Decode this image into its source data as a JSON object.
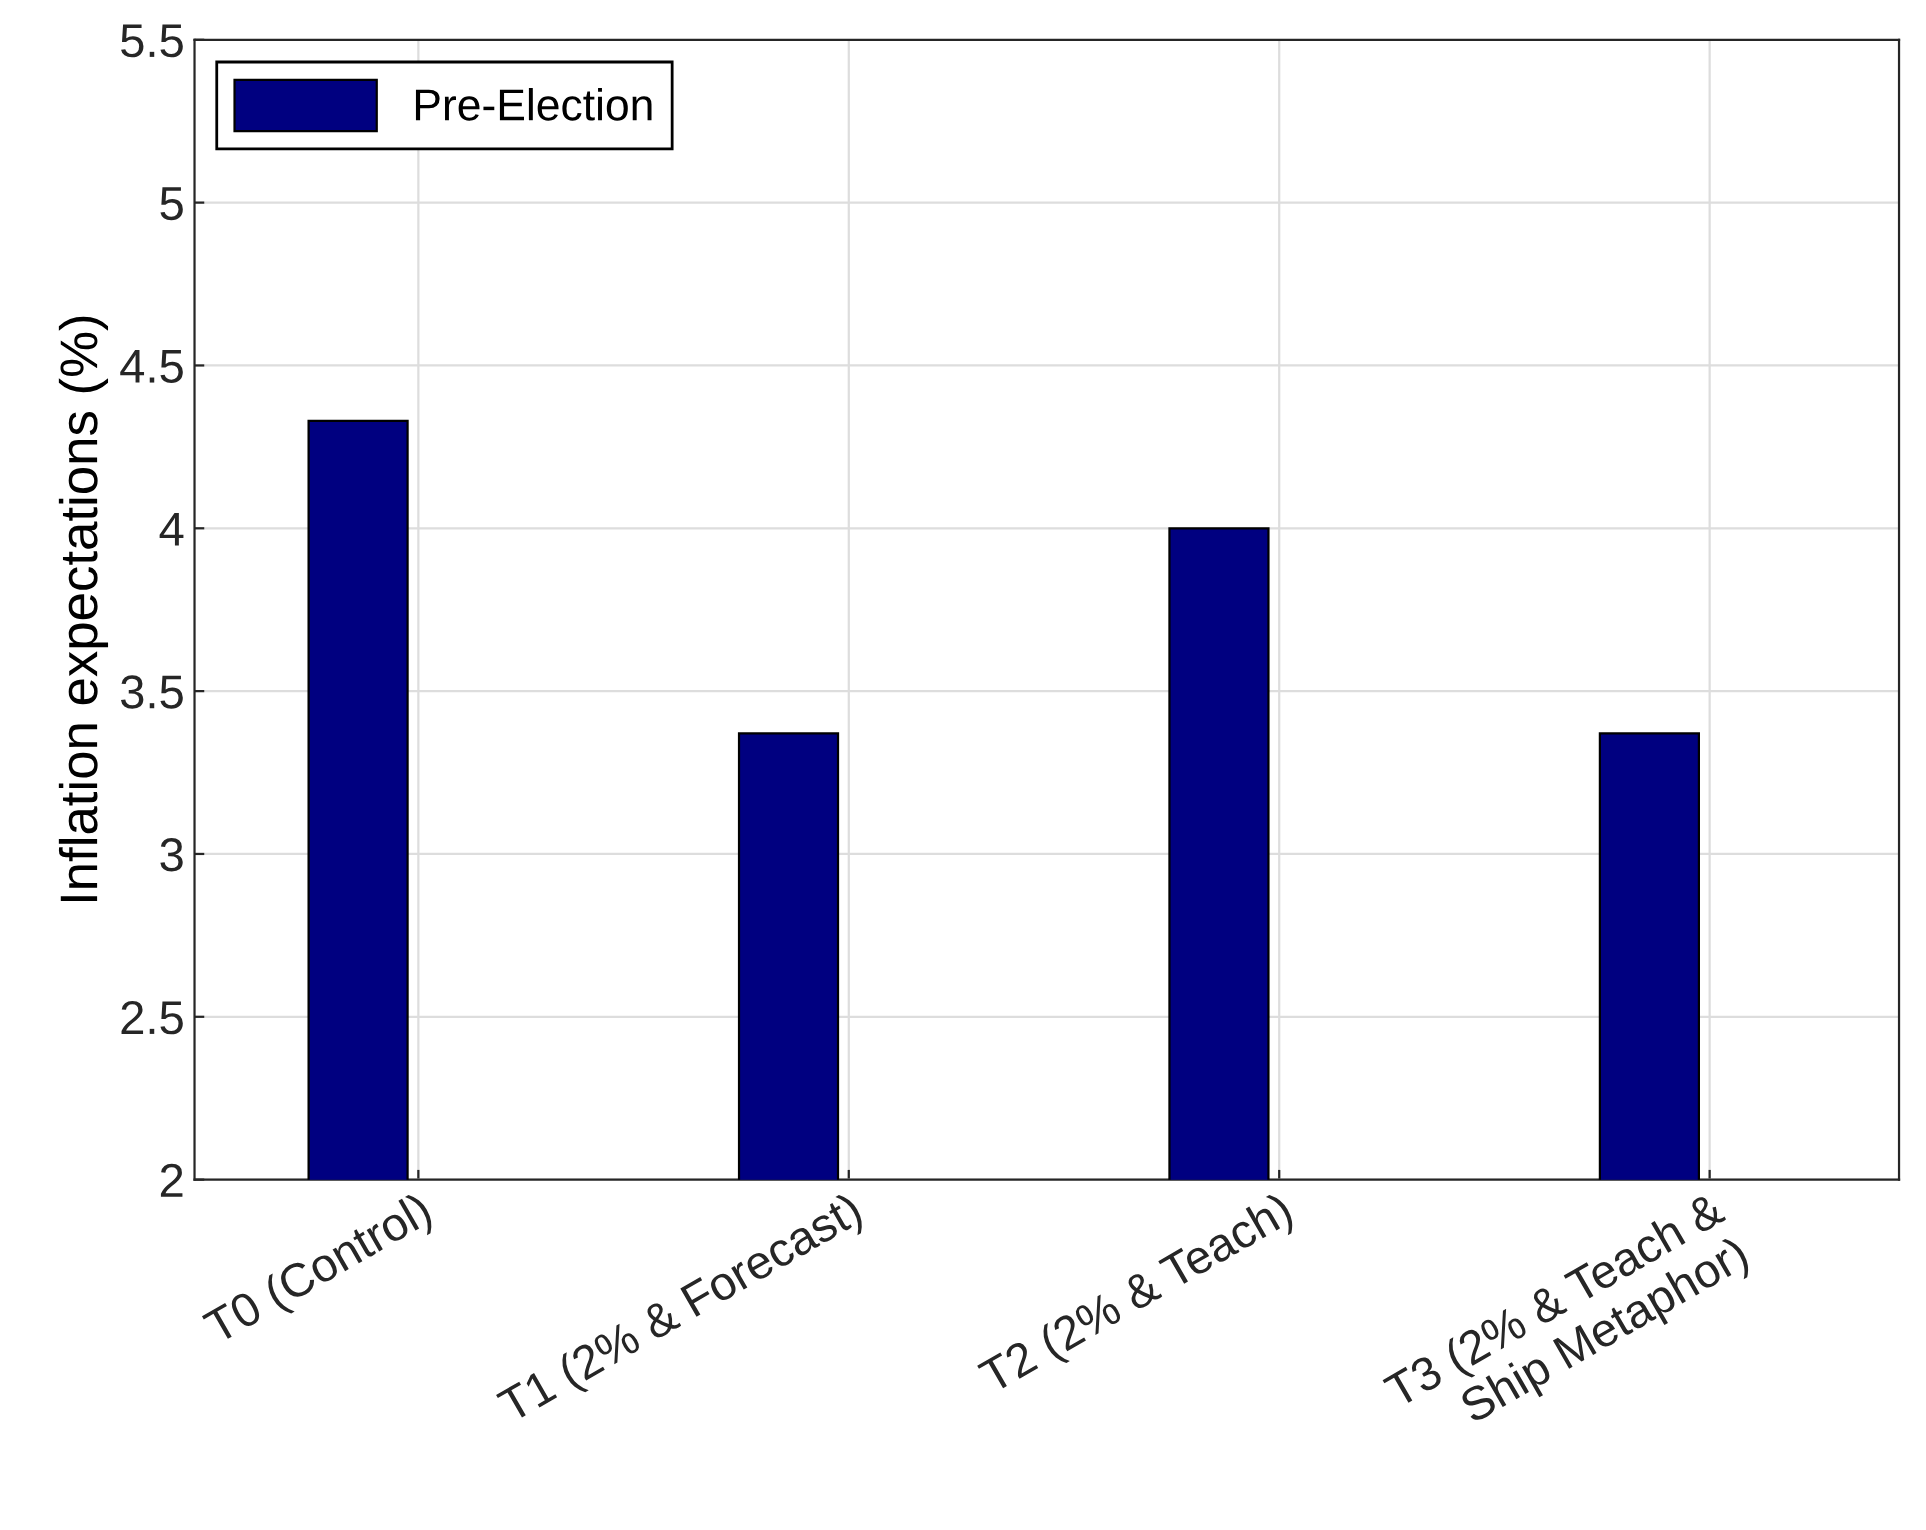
{
  "chart_data": {
    "type": "bar",
    "ylabel": "Inflation expectations (%)",
    "categories": [
      "T0 (Control)",
      "T1 (2% & Forecast)",
      "T2 (2% & Teach)",
      "T3 (2% & Teach &\nShip Metaphor)"
    ],
    "series": [
      {
        "name": "Pre-Election",
        "color": "#000080",
        "values": [
          4.33,
          3.37,
          4.0,
          3.37
        ]
      }
    ],
    "ylim": [
      2,
      5.5
    ],
    "yticks": [
      2,
      2.5,
      3,
      3.5,
      4,
      4.5,
      5,
      5.5
    ],
    "grid": true,
    "legend": "top left"
  }
}
